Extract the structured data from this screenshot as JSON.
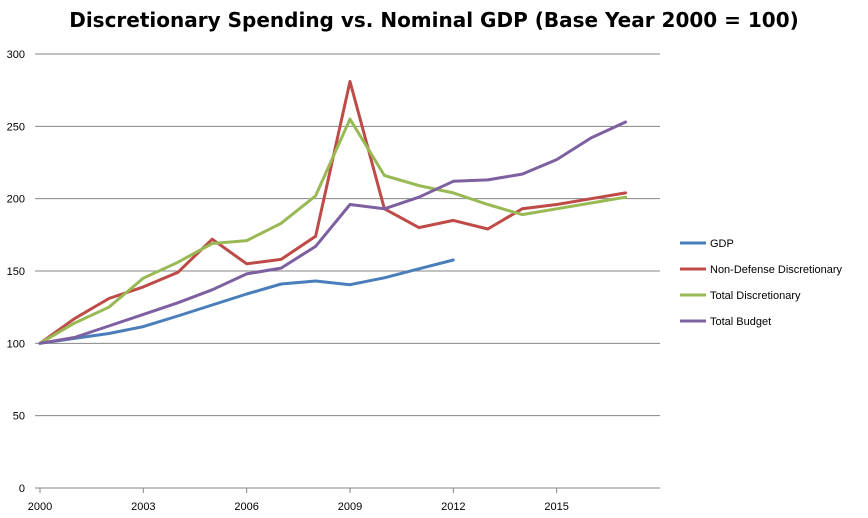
{
  "chart_data": {
    "type": "line",
    "title": "Discretionary Spending vs. Nominal GDP (Base Year 2000 = 100)",
    "xlabel": "",
    "ylabel": "",
    "x": [
      2000,
      2001,
      2002,
      2003,
      2004,
      2005,
      2006,
      2007,
      2008,
      2009,
      2010,
      2011,
      2012,
      2013,
      2014,
      2015,
      2016,
      2017
    ],
    "x_ticks": [
      2000,
      2003,
      2006,
      2009,
      2012,
      2015
    ],
    "y_ticks": [
      0,
      50,
      100,
      150,
      200,
      250,
      300
    ],
    "ylim": [
      0,
      300
    ],
    "xlim": [
      2000,
      2018
    ],
    "grid": "horizontal",
    "legend_position": "right",
    "series": [
      {
        "name": "GDP",
        "color": "#4a7ebb",
        "values": [
          100,
          103.4,
          106.8,
          111.6,
          118.9,
          126.5,
          134.1,
          141.0,
          143.1,
          140.5,
          145.3,
          151.5,
          157.6,
          null,
          null,
          null,
          null,
          null
        ]
      },
      {
        "name": "Non-Defense Discretionary",
        "color": "#be4b48",
        "values": [
          100,
          117,
          131,
          139,
          149,
          172,
          155,
          158,
          174,
          281,
          193,
          180,
          185,
          179,
          193,
          196,
          200,
          204
        ]
      },
      {
        "name": "Total Discretionary",
        "color": "#98b954",
        "values": [
          100,
          114,
          125,
          145,
          156,
          169,
          171,
          183,
          202,
          255,
          216,
          209,
          204,
          196,
          189,
          193,
          197,
          201
        ]
      },
      {
        "name": "Total Budget",
        "color": "#7d60a0",
        "values": [
          100,
          104,
          112,
          120,
          128,
          137,
          148,
          152,
          167,
          196,
          193,
          201,
          212,
          213,
          217,
          227,
          242,
          253
        ]
      }
    ]
  }
}
